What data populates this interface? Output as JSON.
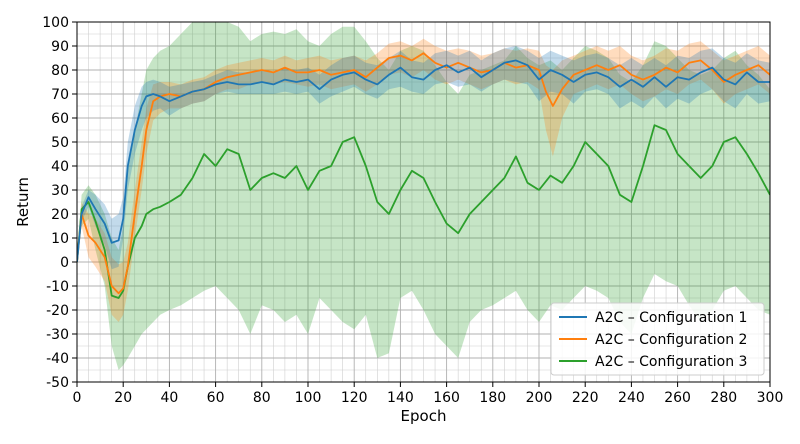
{
  "chart_data": {
    "type": "line",
    "title": "",
    "xlabel": "Epoch",
    "ylabel": "Return",
    "xlim": [
      0,
      300
    ],
    "ylim": [
      -50,
      100
    ],
    "xticks": [
      0,
      20,
      40,
      60,
      80,
      100,
      120,
      140,
      160,
      180,
      200,
      220,
      240,
      260,
      280,
      300
    ],
    "yticks": [
      -50,
      -40,
      -30,
      -20,
      -10,
      0,
      10,
      20,
      30,
      40,
      50,
      60,
      70,
      80,
      90,
      100
    ],
    "grid": "major and minor",
    "legend_position": "bottom-right",
    "series": [
      {
        "name": "A2C – Configuration 1",
        "color": "#1f77b4",
        "x": [
          0,
          2,
          5,
          8,
          12,
          15,
          18,
          20,
          22,
          25,
          28,
          30,
          33,
          36,
          40,
          45,
          50,
          55,
          60,
          65,
          70,
          75,
          80,
          85,
          90,
          95,
          100,
          105,
          110,
          115,
          120,
          125,
          130,
          135,
          140,
          145,
          150,
          155,
          160,
          165,
          170,
          175,
          180,
          185,
          190,
          195,
          200,
          205,
          210,
          215,
          220,
          225,
          230,
          235,
          240,
          245,
          250,
          255,
          260,
          265,
          270,
          275,
          280,
          285,
          290,
          295,
          300
        ],
        "mean": [
          0,
          20,
          27,
          22,
          16,
          8,
          9,
          18,
          40,
          55,
          65,
          69,
          70,
          69,
          67,
          69,
          71,
          72,
          74,
          75,
          74,
          74,
          75,
          74,
          76,
          75,
          76,
          72,
          76,
          78,
          79,
          76,
          74,
          78,
          81,
          77,
          76,
          80,
          82,
          79,
          81,
          77,
          80,
          83,
          84,
          82,
          76,
          80,
          78,
          75,
          78,
          79,
          77,
          73,
          76,
          73,
          77,
          73,
          77,
          76,
          79,
          81,
          76,
          74,
          79,
          75,
          75
        ],
        "lower": [
          0,
          17,
          23,
          15,
          7,
          -3,
          -2,
          10,
          30,
          45,
          55,
          60,
          63,
          64,
          61,
          64,
          66,
          67,
          70,
          71,
          70,
          70,
          70,
          70,
          71,
          70,
          71,
          66,
          69,
          71,
          73,
          70,
          68,
          72,
          73,
          71,
          70,
          74,
          75,
          73,
          74,
          71,
          74,
          76,
          75,
          74,
          67,
          71,
          70,
          66,
          71,
          72,
          70,
          64,
          67,
          64,
          69,
          64,
          68,
          66,
          70,
          72,
          67,
          64,
          70,
          66,
          67
        ],
        "upper": [
          0,
          23,
          30,
          28,
          24,
          18,
          20,
          27,
          50,
          65,
          73,
          75,
          76,
          75,
          73,
          74,
          75,
          76,
          78,
          80,
          79,
          79,
          80,
          79,
          81,
          80,
          81,
          78,
          82,
          85,
          86,
          83,
          82,
          85,
          88,
          84,
          83,
          87,
          88,
          86,
          88,
          84,
          87,
          89,
          90,
          88,
          85,
          88,
          86,
          84,
          86,
          87,
          85,
          82,
          85,
          82,
          85,
          82,
          86,
          85,
          88,
          89,
          85,
          83,
          87,
          84,
          83
        ]
      },
      {
        "name": "A2C – Configuration 2",
        "color": "#ff7f0e",
        "x": [
          0,
          2,
          5,
          8,
          12,
          15,
          18,
          20,
          22,
          25,
          28,
          30,
          33,
          36,
          40,
          45,
          50,
          55,
          60,
          65,
          70,
          75,
          80,
          85,
          90,
          95,
          100,
          105,
          110,
          115,
          120,
          125,
          130,
          135,
          140,
          145,
          150,
          155,
          160,
          165,
          170,
          175,
          180,
          185,
          190,
          195,
          200,
          203,
          206,
          210,
          215,
          220,
          225,
          230,
          235,
          240,
          245,
          250,
          255,
          260,
          265,
          270,
          275,
          280,
          285,
          290,
          295,
          300
        ],
        "mean": [
          0,
          20,
          11,
          8,
          2,
          -10,
          -13,
          -11,
          -2,
          20,
          40,
          55,
          67,
          69,
          70,
          69,
          71,
          72,
          75,
          77,
          78,
          79,
          80,
          79,
          81,
          79,
          79,
          80,
          78,
          79,
          80,
          77,
          81,
          85,
          86,
          84,
          87,
          83,
          81,
          83,
          81,
          79,
          80,
          83,
          81,
          82,
          80,
          71,
          65,
          72,
          78,
          80,
          82,
          80,
          82,
          78,
          76,
          78,
          81,
          79,
          83,
          84,
          80,
          75,
          78,
          80,
          82,
          78
        ],
        "lower": [
          0,
          15,
          2,
          -2,
          -8,
          -22,
          -25,
          -22,
          -12,
          10,
          30,
          45,
          59,
          62,
          64,
          64,
          66,
          67,
          70,
          72,
          72,
          74,
          75,
          74,
          75,
          74,
          73,
          74,
          72,
          73,
          74,
          71,
          74,
          78,
          79,
          77,
          80,
          76,
          74,
          76,
          74,
          72,
          74,
          76,
          74,
          75,
          72,
          55,
          44,
          60,
          70,
          72,
          74,
          72,
          74,
          70,
          67,
          69,
          72,
          70,
          74,
          76,
          72,
          66,
          70,
          72,
          74,
          70
        ],
        "upper": [
          0,
          25,
          20,
          18,
          12,
          2,
          -1,
          0,
          8,
          30,
          50,
          64,
          74,
          75,
          75,
          74,
          76,
          77,
          80,
          82,
          83,
          84,
          85,
          84,
          86,
          84,
          85,
          86,
          84,
          85,
          86,
          84,
          87,
          91,
          92,
          90,
          93,
          90,
          88,
          89,
          88,
          86,
          87,
          89,
          88,
          89,
          88,
          82,
          80,
          84,
          86,
          88,
          90,
          88,
          90,
          86,
          84,
          86,
          89,
          88,
          91,
          92,
          88,
          84,
          86,
          88,
          90,
          86
        ]
      },
      {
        "name": "A2C – Configuration 3",
        "color": "#2ca02c",
        "x": [
          0,
          2,
          5,
          8,
          12,
          15,
          18,
          20,
          22,
          25,
          28,
          30,
          33,
          36,
          40,
          45,
          50,
          55,
          60,
          65,
          70,
          75,
          80,
          85,
          90,
          95,
          100,
          105,
          110,
          115,
          120,
          125,
          130,
          135,
          140,
          145,
          150,
          155,
          160,
          165,
          170,
          175,
          180,
          185,
          190,
          195,
          200,
          205,
          210,
          215,
          220,
          225,
          230,
          235,
          240,
          245,
          250,
          255,
          260,
          265,
          270,
          275,
          280,
          285,
          290,
          295,
          300
        ],
        "mean": [
          0,
          22,
          25,
          17,
          5,
          -14,
          -15,
          -12,
          -2,
          10,
          15,
          20,
          22,
          23,
          25,
          28,
          35,
          45,
          40,
          47,
          45,
          30,
          35,
          37,
          35,
          40,
          30,
          38,
          40,
          50,
          52,
          40,
          25,
          20,
          30,
          38,
          35,
          25,
          16,
          12,
          20,
          25,
          30,
          35,
          44,
          33,
          30,
          36,
          33,
          40,
          50,
          45,
          40,
          28,
          25,
          40,
          57,
          55,
          45,
          40,
          35,
          40,
          50,
          52,
          45,
          37,
          28
        ],
        "lower": [
          0,
          15,
          18,
          5,
          -10,
          -35,
          -45,
          -43,
          -40,
          -35,
          -30,
          -28,
          -25,
          -22,
          -20,
          -18,
          -15,
          -12,
          -10,
          -15,
          -20,
          -30,
          -18,
          -20,
          -25,
          -22,
          -30,
          -15,
          -20,
          -25,
          -28,
          -22,
          -40,
          -38,
          -15,
          -12,
          -20,
          -30,
          -35,
          -40,
          -25,
          -20,
          -18,
          -15,
          -12,
          -20,
          -25,
          -18,
          -20,
          -15,
          -10,
          -12,
          -15,
          -25,
          -30,
          -15,
          -5,
          -8,
          -10,
          -18,
          -25,
          -20,
          -12,
          -10,
          -15,
          -20,
          -22
        ],
        "upper": [
          0,
          28,
          32,
          28,
          20,
          10,
          5,
          15,
          40,
          55,
          70,
          80,
          85,
          88,
          90,
          95,
          100,
          100,
          100,
          100,
          98,
          92,
          95,
          96,
          95,
          97,
          92,
          90,
          95,
          98,
          98,
          92,
          85,
          80,
          88,
          90,
          88,
          82,
          75,
          70,
          78,
          80,
          82,
          84,
          90,
          85,
          82,
          84,
          80,
          85,
          90,
          88,
          85,
          78,
          75,
          82,
          92,
          90,
          85,
          80,
          78,
          80,
          85,
          88,
          82,
          78,
          72
        ]
      }
    ]
  }
}
